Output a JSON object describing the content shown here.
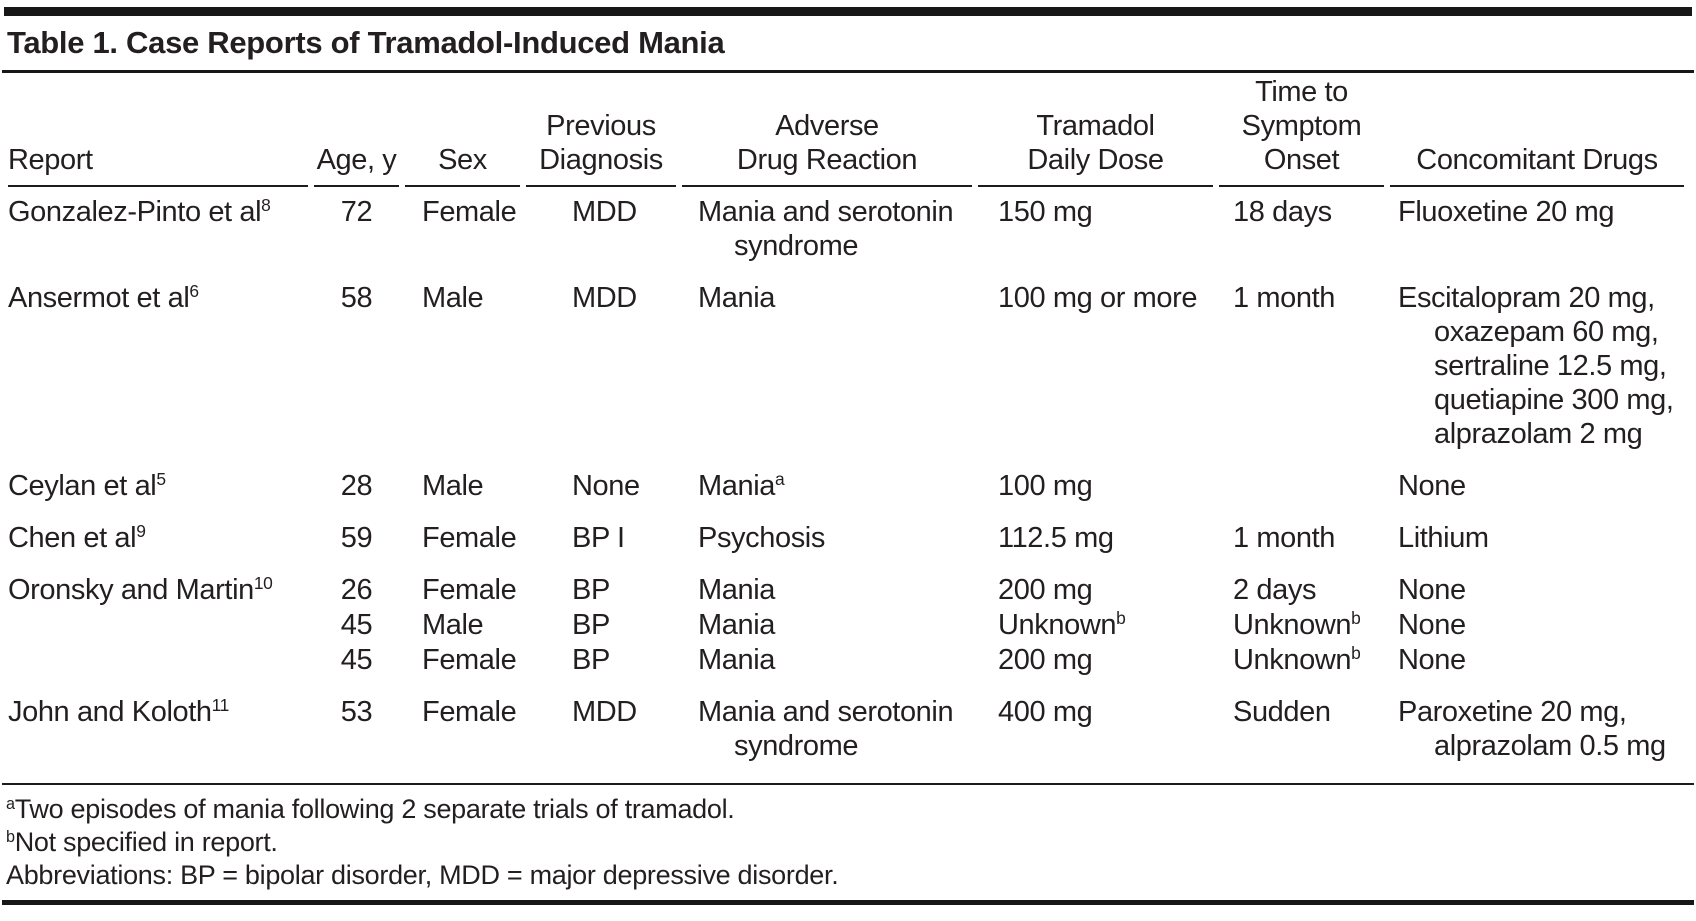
{
  "title": "Table 1. Case Reports of Tramadol-Induced Mania",
  "colors": {
    "ink": "#231f20",
    "rule": "#171717"
  },
  "table": {
    "columns": [
      {
        "id": "report",
        "header_lines": [
          "Report"
        ]
      },
      {
        "id": "age",
        "header_lines": [
          "Age, y"
        ]
      },
      {
        "id": "sex",
        "header_lines": [
          "Sex"
        ]
      },
      {
        "id": "prevdx",
        "header_lines": [
          "Previous",
          "Diagnosis"
        ]
      },
      {
        "id": "adr",
        "header_lines": [
          "Adverse",
          "Drug Reaction"
        ]
      },
      {
        "id": "dose",
        "header_lines": [
          "Tramadol",
          "Daily Dose"
        ]
      },
      {
        "id": "onset",
        "header_lines": [
          "Time to",
          "Symptom",
          "Onset"
        ]
      },
      {
        "id": "drugs",
        "header_lines": [
          "Concomitant Drugs"
        ]
      }
    ],
    "rows": [
      {
        "sub_of_previous": false,
        "cells": [
          [
            "Gonzalez-Pinto et al^{8}"
          ],
          [
            "72"
          ],
          [
            "Female"
          ],
          [
            "MDD"
          ],
          [
            "Mania and serotonin",
            "syndrome"
          ],
          [
            "150 mg"
          ],
          [
            "18 days"
          ],
          [
            "Fluoxetine 20 mg"
          ]
        ]
      },
      {
        "sub_of_previous": false,
        "cells": [
          [
            "Ansermot et al^{6}"
          ],
          [
            "58"
          ],
          [
            "Male"
          ],
          [
            "MDD"
          ],
          [
            "Mania"
          ],
          [
            "100 mg or more"
          ],
          [
            "1 month"
          ],
          [
            "Escitalopram 20 mg,",
            "oxazepam 60 mg,",
            "sertraline 12.5 mg,",
            "quetiapine 300 mg,",
            "alprazolam 2 mg"
          ]
        ]
      },
      {
        "sub_of_previous": false,
        "cells": [
          [
            "Ceylan et al^{5}"
          ],
          [
            "28"
          ],
          [
            "Male"
          ],
          [
            "None"
          ],
          [
            "Mania^{a}"
          ],
          [
            "100 mg"
          ],
          [
            ""
          ],
          [
            "None"
          ]
        ]
      },
      {
        "sub_of_previous": false,
        "cells": [
          [
            "Chen et al^{9}"
          ],
          [
            "59"
          ],
          [
            "Female"
          ],
          [
            "BP I"
          ],
          [
            "Psychosis"
          ],
          [
            "112.5 mg"
          ],
          [
            "1 month"
          ],
          [
            "Lithium"
          ]
        ]
      },
      {
        "sub_of_previous": false,
        "cells": [
          [
            "Oronsky and Martin^{10}"
          ],
          [
            "26"
          ],
          [
            "Female"
          ],
          [
            "BP"
          ],
          [
            "Mania"
          ],
          [
            "200 mg"
          ],
          [
            "2 days"
          ],
          [
            "None"
          ]
        ]
      },
      {
        "sub_of_previous": true,
        "cells": [
          [
            ""
          ],
          [
            "45"
          ],
          [
            "Male"
          ],
          [
            "BP"
          ],
          [
            "Mania"
          ],
          [
            "Unknown^{b}"
          ],
          [
            "Unknown^{b}"
          ],
          [
            "None"
          ]
        ]
      },
      {
        "sub_of_previous": true,
        "cells": [
          [
            ""
          ],
          [
            "45"
          ],
          [
            "Female"
          ],
          [
            "BP"
          ],
          [
            "Mania"
          ],
          [
            "200 mg"
          ],
          [
            "Unknown^{b}"
          ],
          [
            "None"
          ]
        ]
      },
      {
        "sub_of_previous": false,
        "cells": [
          [
            "John and Koloth^{11}"
          ],
          [
            "53"
          ],
          [
            "Female"
          ],
          [
            "MDD"
          ],
          [
            "Mania and serotonin",
            "syndrome"
          ],
          [
            "400 mg"
          ],
          [
            "Sudden"
          ],
          [
            "Paroxetine 20 mg,",
            "alprazolam 0.5 mg"
          ]
        ]
      }
    ]
  },
  "footnotes": [
    "^{a}Two episodes of mania following 2 separate trials of tramadol.",
    "^{b}Not specified in report.",
    "Abbreviations: BP = bipolar disorder, MDD = major depressive disorder."
  ]
}
